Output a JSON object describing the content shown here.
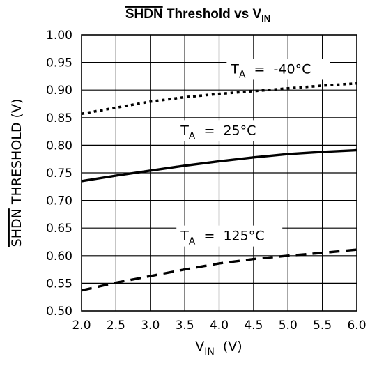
{
  "chart_data": {
    "type": "line",
    "title": {
      "overline": "SHDN",
      "rest": " Threshold vs V",
      "sub": "IN"
    },
    "xlabel": {
      "main": "V",
      "sub": "IN",
      "unit": "(V)"
    },
    "ylabel": {
      "overline": "SHDN",
      "rest": " THRESHOLD (V)"
    },
    "xlim": [
      2.0,
      6.0
    ],
    "ylim": [
      0.5,
      1.0
    ],
    "x_ticks": [
      "2.0",
      "2.5",
      "3.0",
      "3.5",
      "4.0",
      "4.5",
      "5.0",
      "5.5",
      "6.0"
    ],
    "y_ticks": [
      "0.50",
      "0.55",
      "0.60",
      "0.65",
      "0.70",
      "0.75",
      "0.80",
      "0.85",
      "0.90",
      "0.95",
      "1.00"
    ],
    "grid": true,
    "series": [
      {
        "name": "T_A = -40°C",
        "label_main": "T",
        "label_sub": "A",
        "label_rest": " = -40°C",
        "style": "dotted",
        "x": [
          2.0,
          2.5,
          3.0,
          3.5,
          4.0,
          4.5,
          5.0,
          5.5,
          6.0
        ],
        "y": [
          0.857,
          0.868,
          0.879,
          0.887,
          0.893,
          0.898,
          0.903,
          0.908,
          0.912
        ]
      },
      {
        "name": "T_A = 25°C",
        "label_main": "T",
        "label_sub": "A",
        "label_rest": " = 25°C",
        "style": "solid",
        "x": [
          2.0,
          2.5,
          3.0,
          3.5,
          4.0,
          4.5,
          5.0,
          5.5,
          6.0
        ],
        "y": [
          0.735,
          0.745,
          0.754,
          0.763,
          0.771,
          0.778,
          0.784,
          0.788,
          0.791
        ]
      },
      {
        "name": "T_A = 125°C",
        "label_main": "T",
        "label_sub": "A",
        "label_rest": " = 125°C",
        "style": "dashed",
        "x": [
          2.0,
          2.5,
          3.0,
          3.5,
          4.0,
          4.5,
          5.0,
          5.5,
          6.0
        ],
        "y": [
          0.537,
          0.551,
          0.563,
          0.575,
          0.586,
          0.594,
          0.6,
          0.605,
          0.611
        ]
      }
    ]
  }
}
